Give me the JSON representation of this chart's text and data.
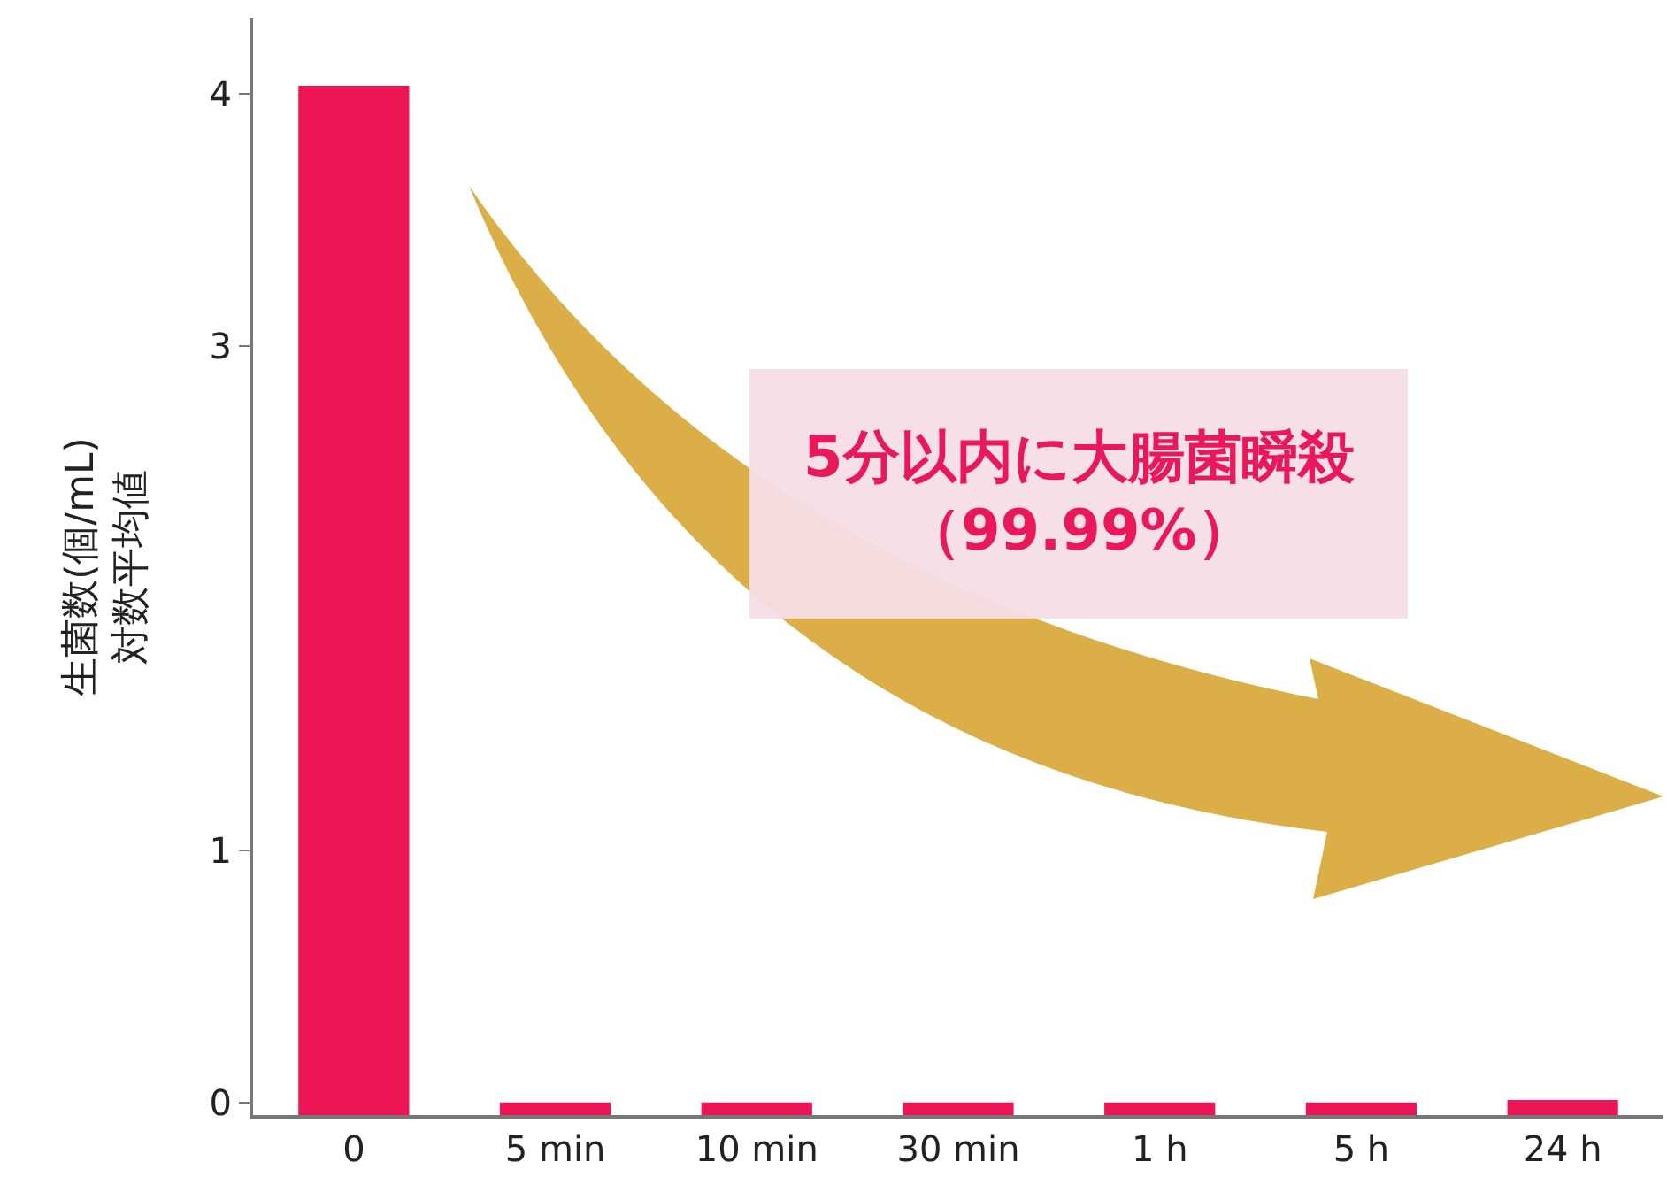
{
  "chart_data": {
    "type": "bar",
    "ylabel": "生菌数(個/mL)\n対数平均値",
    "categories": [
      "0",
      "5 min",
      "10 min",
      "30 min",
      "1 h",
      "5 h",
      "24 h"
    ],
    "values": [
      4.08,
      0.05,
      0.05,
      0.05,
      0.05,
      0.05,
      0.06
    ],
    "base": [
      -0.05,
      -0.05,
      -0.05,
      -0.05,
      -0.05,
      -0.05,
      -0.05
    ],
    "color": "#ee1556",
    "ylim": [
      -0.05,
      4.3
    ],
    "yticks": [
      0,
      1,
      3,
      4
    ],
    "annotations": [
      "5分以内に大腸菌瞬殺",
      "（99.99%）"
    ]
  }
}
